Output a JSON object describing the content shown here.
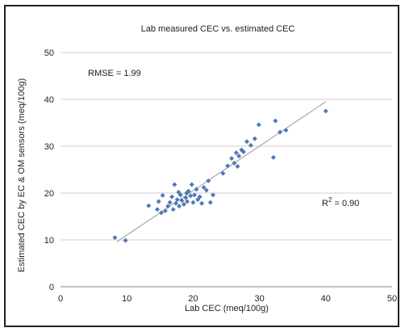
{
  "chart_data": {
    "type": "scatter",
    "title": "Lab measured CEC vs. estimated CEC",
    "xlabel": "Lab CEC (meq/100g)",
    "ylabel": "Estimated CEC by EC & OM sensors (meq/100g)",
    "xlim": [
      0,
      50
    ],
    "ylim": [
      0,
      50
    ],
    "xticks": [
      "0",
      "10",
      "20",
      "30",
      "40",
      "50"
    ],
    "yticks": [
      "0",
      "10",
      "20",
      "30",
      "40",
      "50"
    ],
    "grid": "horizontal",
    "marker_color": "#4f78b8",
    "annotations": {
      "rmse": "RMSE = 1.99",
      "r2_prefix": "R",
      "r2_sup": "2",
      "r2_suffix": " = 0.90"
    },
    "trendline": {
      "x": [
        8.5,
        40
      ],
      "y": [
        9.6,
        39.5
      ]
    },
    "points": [
      {
        "x": 8.2,
        "y": 10.5
      },
      {
        "x": 9.8,
        "y": 9.9
      },
      {
        "x": 13.3,
        "y": 17.3
      },
      {
        "x": 14.6,
        "y": 16.5
      },
      {
        "x": 14.8,
        "y": 18.2
      },
      {
        "x": 15.2,
        "y": 15.8
      },
      {
        "x": 15.4,
        "y": 19.5
      },
      {
        "x": 15.8,
        "y": 16.2
      },
      {
        "x": 16.2,
        "y": 17.2
      },
      {
        "x": 16.5,
        "y": 18.0
      },
      {
        "x": 16.8,
        "y": 19.2
      },
      {
        "x": 17.0,
        "y": 16.5
      },
      {
        "x": 17.2,
        "y": 21.8
      },
      {
        "x": 17.4,
        "y": 17.8
      },
      {
        "x": 17.6,
        "y": 18.6
      },
      {
        "x": 17.9,
        "y": 17.2
      },
      {
        "x": 18.1,
        "y": 19.6
      },
      {
        "x": 18.3,
        "y": 18.4
      },
      {
        "x": 18.6,
        "y": 17.6
      },
      {
        "x": 18.9,
        "y": 19.0
      },
      {
        "x": 19.1,
        "y": 18.2
      },
      {
        "x": 19.3,
        "y": 20.4
      },
      {
        "x": 19.6,
        "y": 19.4
      },
      {
        "x": 19.8,
        "y": 21.8
      },
      {
        "x": 20.0,
        "y": 18.0
      },
      {
        "x": 20.2,
        "y": 19.6
      },
      {
        "x": 20.5,
        "y": 20.8
      },
      {
        "x": 20.7,
        "y": 18.6
      },
      {
        "x": 21.0,
        "y": 19.2
      },
      {
        "x": 21.3,
        "y": 17.8
      },
      {
        "x": 21.6,
        "y": 21.2
      },
      {
        "x": 22.0,
        "y": 20.6
      },
      {
        "x": 22.3,
        "y": 22.6
      },
      {
        "x": 22.6,
        "y": 18.0
      },
      {
        "x": 23.0,
        "y": 19.6
      },
      {
        "x": 17.8,
        "y": 20.2
      },
      {
        "x": 19.0,
        "y": 20.0
      },
      {
        "x": 24.5,
        "y": 24.2
      },
      {
        "x": 25.2,
        "y": 25.8
      },
      {
        "x": 25.8,
        "y": 27.4
      },
      {
        "x": 26.2,
        "y": 26.4
      },
      {
        "x": 26.5,
        "y": 28.6
      },
      {
        "x": 26.9,
        "y": 27.9
      },
      {
        "x": 27.3,
        "y": 29.2
      },
      {
        "x": 27.6,
        "y": 28.8
      },
      {
        "x": 26.7,
        "y": 25.7
      },
      {
        "x": 28.1,
        "y": 31.0
      },
      {
        "x": 28.7,
        "y": 30.2
      },
      {
        "x": 29.3,
        "y": 31.6
      },
      {
        "x": 29.9,
        "y": 34.6
      },
      {
        "x": 32.1,
        "y": 27.6
      },
      {
        "x": 32.4,
        "y": 35.4
      },
      {
        "x": 33.1,
        "y": 33.0
      },
      {
        "x": 34.0,
        "y": 33.4
      },
      {
        "x": 40.0,
        "y": 37.5
      }
    ]
  }
}
